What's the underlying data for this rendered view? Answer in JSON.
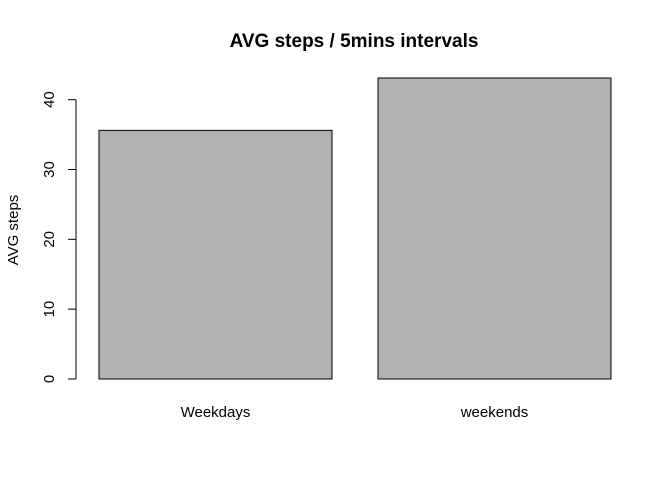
{
  "chart_data": {
    "type": "bar",
    "title": "AVG steps / 5mins intervals",
    "xlabel": "",
    "ylabel": "AVG steps",
    "categories": [
      "Weekdays",
      "weekends"
    ],
    "values": [
      35.6,
      43.1
    ],
    "ylim": [
      0,
      43.1
    ],
    "yticks": [
      0,
      10,
      20,
      30,
      40
    ],
    "bar_color": "#b2b2b2",
    "grid": false,
    "legend": "none"
  }
}
